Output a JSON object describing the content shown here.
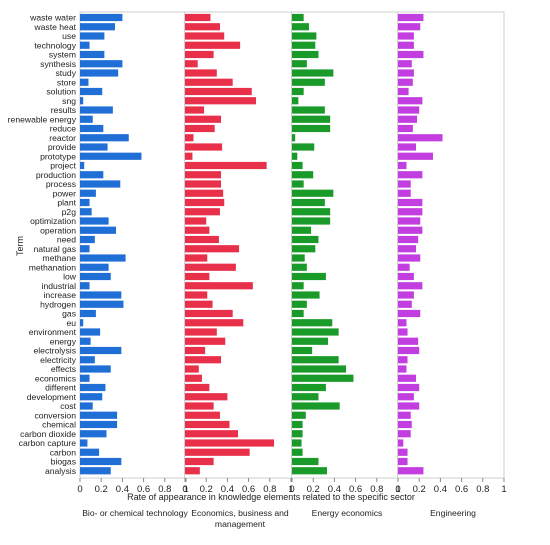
{
  "chart_data": {
    "type": "bar",
    "orientation": "horizontal",
    "ylabel": "Term",
    "xlabel": "Rate of appearance in knowledge elements related to the specific sector",
    "xlim": [
      0,
      1
    ],
    "xticks": [
      "0",
      "0.2",
      "0.4",
      "0.6",
      "0.8",
      "1"
    ],
    "gridlines": false,
    "categories": [
      "waste water",
      "waste heat",
      "use",
      "technology",
      "system",
      "synthesis",
      "study",
      "store",
      "solution",
      "sng",
      "results",
      "renewable energy",
      "reduce",
      "reactor",
      "provide",
      "prototype",
      "project",
      "production",
      "process",
      "power",
      "plant",
      "p2g",
      "optimization",
      "operation",
      "need",
      "natural gas",
      "methane",
      "methanation",
      "low",
      "industrial",
      "increase",
      "hydrogen",
      "gas",
      "eu",
      "environment",
      "energy",
      "electrolysis",
      "electricity",
      "effects",
      "economics",
      "different",
      "development",
      "cost",
      "conversion",
      "chemical",
      "carbon dioxide",
      "carbon capture",
      "carbon",
      "biogas",
      "analysis"
    ],
    "series": [
      {
        "name": "Bio- or chemical technology",
        "color": "#1f6fd6",
        "values": [
          0.4,
          0.33,
          0.23,
          0.09,
          0.23,
          0.4,
          0.36,
          0.08,
          0.21,
          0.03,
          0.31,
          0.12,
          0.22,
          0.46,
          0.26,
          0.58,
          0.04,
          0.22,
          0.38,
          0.15,
          0.09,
          0.11,
          0.27,
          0.34,
          0.14,
          0.09,
          0.43,
          0.27,
          0.29,
          0.09,
          0.39,
          0.41,
          0.15,
          0.03,
          0.19,
          0.1,
          0.39,
          0.14,
          0.29,
          0.09,
          0.24,
          0.21,
          0.12,
          0.35,
          0.35,
          0.25,
          0.07,
          0.18,
          0.39,
          0.29
        ]
      },
      {
        "name": "Economics, business and management",
        "color": "#e8304a",
        "values": [
          0.24,
          0.33,
          0.37,
          0.52,
          0.27,
          0.12,
          0.3,
          0.45,
          0.63,
          0.67,
          0.18,
          0.34,
          0.28,
          0.08,
          0.35,
          0.07,
          0.77,
          0.34,
          0.34,
          0.36,
          0.37,
          0.33,
          0.2,
          0.23,
          0.32,
          0.51,
          0.21,
          0.48,
          0.23,
          0.64,
          0.21,
          0.26,
          0.45,
          0.55,
          0.3,
          0.38,
          0.19,
          0.34,
          0.13,
          0.16,
          0.23,
          0.4,
          0.27,
          0.33,
          0.42,
          0.5,
          0.84,
          0.61,
          0.27,
          0.14
        ]
      },
      {
        "name": "Energy economics",
        "color": "#1a9a28",
        "values": [
          0.11,
          0.16,
          0.23,
          0.22,
          0.25,
          0.14,
          0.39,
          0.31,
          0.11,
          0.06,
          0.31,
          0.36,
          0.36,
          0.03,
          0.21,
          0.05,
          0.1,
          0.2,
          0.11,
          0.39,
          0.31,
          0.36,
          0.36,
          0.18,
          0.25,
          0.22,
          0.12,
          0.14,
          0.32,
          0.11,
          0.26,
          0.14,
          0.11,
          0.38,
          0.44,
          0.34,
          0.19,
          0.44,
          0.51,
          0.58,
          0.32,
          0.25,
          0.45,
          0.13,
          0.1,
          0.1,
          0.09,
          0.1,
          0.25,
          0.33
        ]
      },
      {
        "name": "Engineering",
        "color": "#c23ee0",
        "values": [
          0.24,
          0.21,
          0.15,
          0.15,
          0.24,
          0.13,
          0.15,
          0.14,
          0.1,
          0.23,
          0.2,
          0.18,
          0.14,
          0.42,
          0.17,
          0.33,
          0.08,
          0.23,
          0.12,
          0.12,
          0.23,
          0.23,
          0.21,
          0.23,
          0.19,
          0.17,
          0.21,
          0.11,
          0.15,
          0.23,
          0.15,
          0.13,
          0.21,
          0.08,
          0.09,
          0.19,
          0.2,
          0.09,
          0.08,
          0.17,
          0.2,
          0.15,
          0.2,
          0.12,
          0.13,
          0.12,
          0.05,
          0.09,
          0.09,
          0.24
        ]
      }
    ]
  }
}
